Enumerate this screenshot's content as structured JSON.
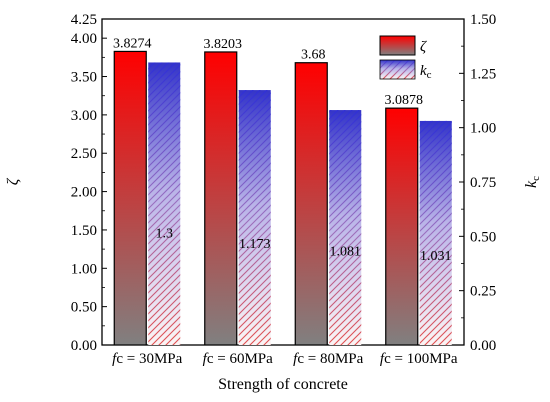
{
  "chart_data": {
    "type": "bar",
    "categories": [
      "fc = 30MPa",
      "fc = 60MPa",
      "fc = 80MPa",
      "fc = 100MPa"
    ],
    "xlabel": "Strength of concrete",
    "series": [
      {
        "name": "ζ",
        "axis": "left",
        "values": [
          3.8274,
          3.8203,
          3.68,
          3.0878
        ],
        "labels": [
          "3.8274",
          "3.8203",
          "3.68",
          "3.0878"
        ],
        "colors": {
          "top": "#ff0000",
          "bottom": "#808080",
          "border": "#000000"
        }
      },
      {
        "name": "kc",
        "axis": "right",
        "values": [
          1.3,
          1.173,
          1.081,
          1.031
        ],
        "labels": [
          "1.3",
          "1.173",
          "1.081",
          "1.031"
        ],
        "colors": {
          "top": "#3333cc",
          "bottom": "#f4eef6",
          "hatch_top": "#3b3bdd",
          "hatch_bottom": "#e06060"
        }
      }
    ],
    "y_left": {
      "label": "ζ",
      "ylim": [
        0,
        4.25
      ],
      "ticks": [
        "0.00",
        "0.50",
        "1.00",
        "1.50",
        "2.00",
        "2.50",
        "3.00",
        "3.50",
        "4.00",
        "4.25"
      ]
    },
    "y_right": {
      "label": "kc",
      "ylim": [
        0,
        1.5
      ],
      "ticks": [
        "0.00",
        "0.25",
        "0.50",
        "0.75",
        "1.00",
        "1.25",
        "1.50"
      ]
    },
    "legend": {
      "placement": "top-right"
    },
    "grid": false
  }
}
